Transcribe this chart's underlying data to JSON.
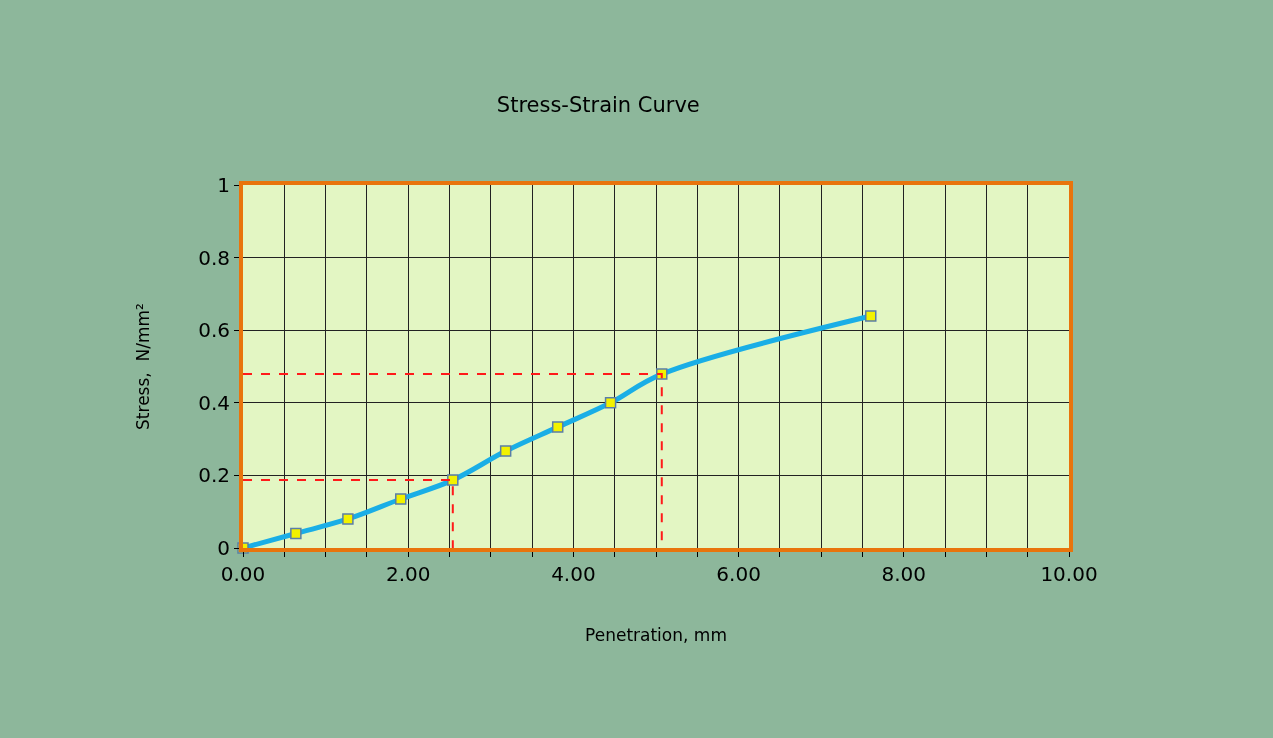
{
  "chart_data": {
    "type": "line",
    "title": "Stress-Strain Curve",
    "xlabel": "Penetration, mm",
    "ylabel": "Stress,  N/mm²",
    "series": [
      {
        "x": [
          0,
          0.64,
          1.27,
          1.91,
          2.54,
          3.18,
          3.81,
          4.45,
          5.07,
          7.6
        ],
        "values": [
          0,
          0.04,
          0.08,
          0.135,
          0.187,
          0.267,
          0.333,
          0.4,
          0.479,
          0.639
        ],
        "color": "#1aaee6",
        "marker": "square",
        "line_style": "solid"
      },
      {
        "x": [
          0,
          2.54,
          2.54
        ],
        "values": [
          0.187,
          0.187,
          0
        ],
        "color": "#ff1a1a",
        "marker": "none",
        "line_style": "dashed"
      },
      {
        "x": [
          0,
          5.07,
          5.07
        ],
        "values": [
          0.479,
          0.479,
          0
        ],
        "color": "#ff1a1a",
        "marker": "none",
        "line_style": "dashed"
      }
    ],
    "xlim": [
      0,
      10
    ],
    "ylim": [
      0,
      1
    ],
    "xticks": [
      {
        "value": 0,
        "label": "0.00"
      },
      {
        "value": 0.5,
        "label": null
      },
      {
        "value": 1,
        "label": null
      },
      {
        "value": 1.5,
        "label": null
      },
      {
        "value": 2,
        "label": "2.00"
      },
      {
        "value": 2.5,
        "label": null
      },
      {
        "value": 3,
        "label": null
      },
      {
        "value": 3.5,
        "label": null
      },
      {
        "value": 4,
        "label": "4.00"
      },
      {
        "value": 4.5,
        "label": null
      },
      {
        "value": 5,
        "label": null
      },
      {
        "value": 5.5,
        "label": null
      },
      {
        "value": 6,
        "label": "6.00"
      },
      {
        "value": 6.5,
        "label": null
      },
      {
        "value": 7,
        "label": null
      },
      {
        "value": 7.5,
        "label": null
      },
      {
        "value": 8,
        "label": "8.00"
      },
      {
        "value": 8.5,
        "label": null
      },
      {
        "value": 9,
        "label": null
      },
      {
        "value": 9.5,
        "label": null
      },
      {
        "value": 10,
        "label": "10.00"
      }
    ],
    "yticks": [
      0,
      0.2,
      0.4,
      0.6,
      0.8,
      1
    ],
    "grid": true
  }
}
